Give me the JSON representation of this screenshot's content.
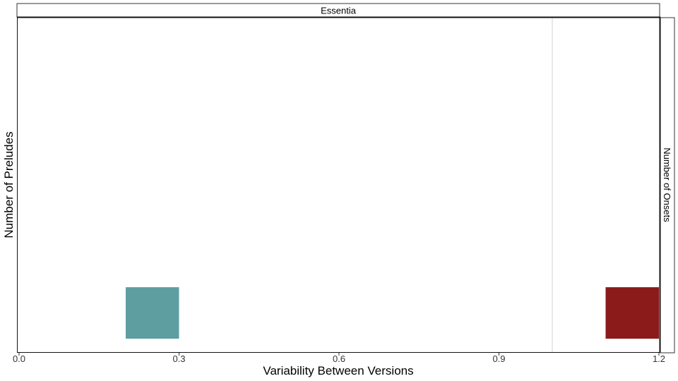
{
  "chart_data": {
    "type": "bar",
    "panel_strip_top": "Essentia",
    "panel_strip_right": "Number of Onsets",
    "xlabel": "Variability Between Versions",
    "ylabel": "Number of Preludes",
    "xlim": [
      0.0,
      1.2
    ],
    "x_ticks": [
      "0.0",
      "0.3",
      "0.6",
      "0.9",
      "1.2"
    ],
    "x_tick_values": [
      0.0,
      0.3,
      0.6,
      0.9,
      1.2
    ],
    "reference_line_x": 1.0,
    "grid": false,
    "bars": [
      {
        "x_start": 0.2,
        "x_end": 0.3,
        "count": 1,
        "color": "#5f9ea0"
      },
      {
        "x_start": 1.1,
        "x_end": 1.2,
        "count": 1,
        "color": "#8b1a1a"
      }
    ]
  }
}
